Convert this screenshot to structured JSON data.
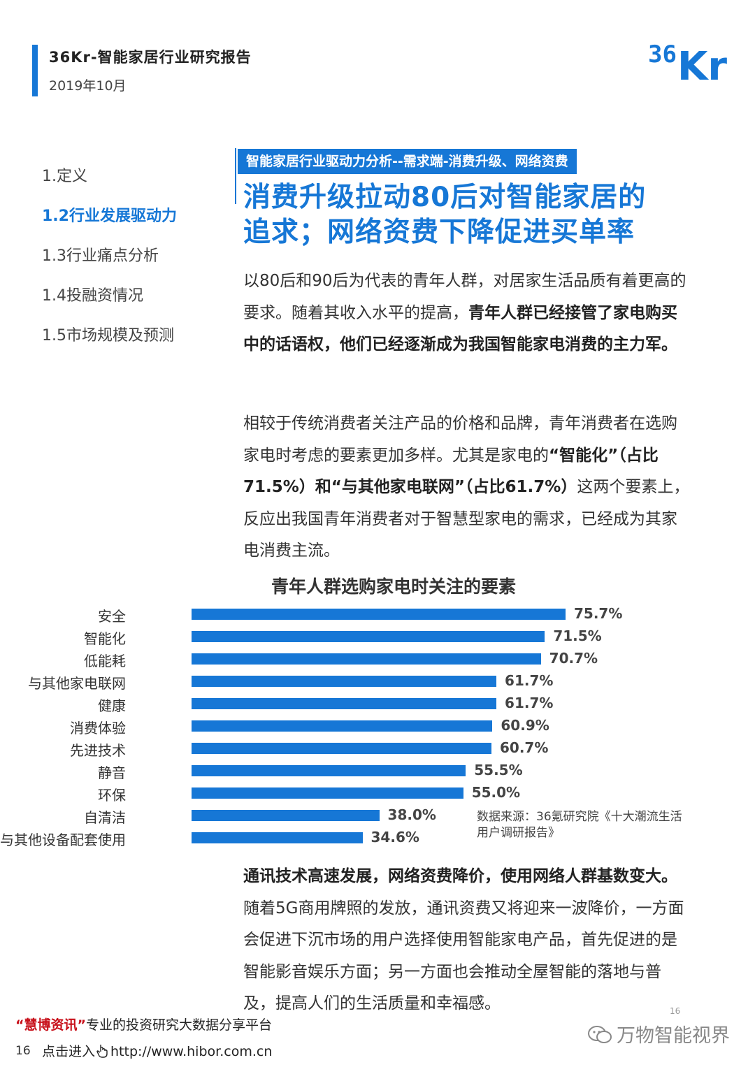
{
  "header": {
    "title": "36Kr-智能家居行业研究报告",
    "date": "2019年10月",
    "logo_text_num": "36",
    "logo_text_kr": "Kr"
  },
  "nav": {
    "items": [
      {
        "label": "1.定义",
        "active": false
      },
      {
        "label": "1.2行业发展驱动力",
        "active": true
      },
      {
        "label": "1.3行业痛点分析",
        "active": false
      },
      {
        "label": "1.4投融资情况",
        "active": false
      },
      {
        "label": "1.5市场规模及预测",
        "active": false
      }
    ]
  },
  "section": {
    "tag": "智能家居行业驱动力分析--需求端-消费升级、网络资费",
    "headline_line1": "消费升级拉动80后对智能家居的",
    "headline_line2": "追求；网络资费下降促进买单率"
  },
  "paragraphs": {
    "p1_normal": "以80后和90后为代表的青年人群，对居家生活品质有着更高的要求。随着其收入水平的提高，",
    "p1_bold": "青年人群已经接管了家电购买中的话语权，他们已经逐渐成为我国智能家电消费的主力军。",
    "p2_normal_a": "相较于传统消费者关注产品的价格和品牌，青年消费者在选购家电时考虑的要素更加多样。尤其是家电的",
    "p2_bold": "“智能化”（占比71.5%）和“与其他家电联网”（占比61.7%）",
    "p2_normal_b": "这两个要素上，反应出我国青年消费者对于智慧型家电的需求，已经成为其家电消费主流。",
    "p3_bold": "通讯技术高速发展，网络资费降价，使用网络人群基数变大。",
    "p3_normal": "随着5G商用牌照的发放，通讯资费又将迎来一波降价，一方面会促进下沉市场的用户选择使用智能家电产品，首先促进的是智能影音娱乐方面；另一方面也会推动全屋智能的落地与普及，提高人们的生活质量和幸福感。"
  },
  "chart_data": {
    "type": "bar",
    "orientation": "horizontal",
    "title": "青年人群选购家电时关注的要素",
    "categories": [
      "安全",
      "智能化",
      "低能耗",
      "与其他家电联网",
      "健康",
      "消费体验",
      "先进技术",
      "静音",
      "环保",
      "自清洁",
      "与其他设备配套使用"
    ],
    "values": [
      75.7,
      71.5,
      70.7,
      61.7,
      61.7,
      60.9,
      60.7,
      55.5,
      55.0,
      38.0,
      34.6
    ],
    "labels": [
      "75.7%",
      "71.5%",
      "70.7%",
      "61.7%",
      "61.7%",
      "60.9%",
      "60.7%",
      "55.5%",
      "55.0%",
      "38.0%",
      "34.6%"
    ],
    "unit": "%",
    "xlim": [
      0,
      100
    ],
    "bar_color": "#1677d6",
    "grid": false,
    "source": "数据来源：36氪研究院《十大潮流生活用户调研报告》"
  },
  "footer": {
    "brand_quote": "“慧博资讯”",
    "tagline": "专业的投资研究大数据分享平台",
    "click_label": "点击进入",
    "url": "http://www.hibor.com.cn",
    "page_number": "16",
    "page_number_small": "16",
    "watermark": "万物智能视界"
  },
  "colors": {
    "accent": "#1677d6",
    "brand_red": "#c8101a"
  }
}
